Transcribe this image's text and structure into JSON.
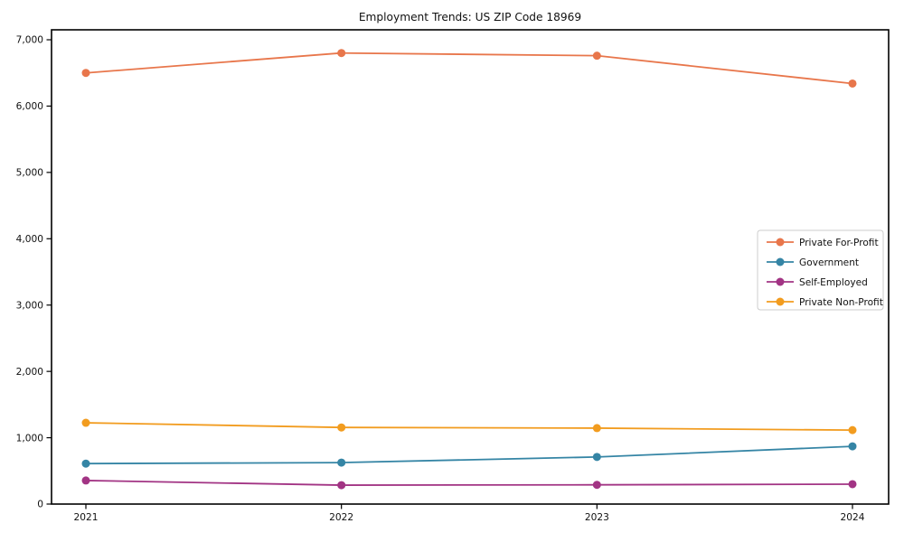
{
  "chart_data": {
    "type": "line",
    "title": "Employment Trends: US ZIP Code 18969",
    "categories": [
      "2021",
      "2022",
      "2023",
      "2024"
    ],
    "x": [
      2021,
      2022,
      2023,
      2024
    ],
    "series": [
      {
        "name": "Private For-Profit",
        "color": "#e8764b",
        "values": [
          6500,
          6800,
          6760,
          6340
        ]
      },
      {
        "name": "Government",
        "color": "#3585a5",
        "values": [
          610,
          625,
          710,
          870
        ]
      },
      {
        "name": "Self-Employed",
        "color": "#a23484",
        "values": [
          355,
          285,
          290,
          300
        ]
      },
      {
        "name": "Private Non-Profit",
        "color": "#f29c1f",
        "values": [
          1225,
          1155,
          1145,
          1115
        ]
      }
    ],
    "xlabel": "",
    "ylabel": "",
    "ylim": [
      0,
      7150
    ],
    "yticks": [
      0,
      1000,
      2000,
      3000,
      4000,
      5000,
      6000,
      7000
    ],
    "ytick_labels": [
      "0",
      "1,000",
      "2,000",
      "3,000",
      "4,000",
      "5,000",
      "6,000",
      "7,000"
    ],
    "grid": false,
    "legend_position": "right-middle",
    "marker": "circle",
    "frame_color": "#000000",
    "legend_border_color": "#cccccc",
    "legend_bg_color": "#ffffff"
  }
}
